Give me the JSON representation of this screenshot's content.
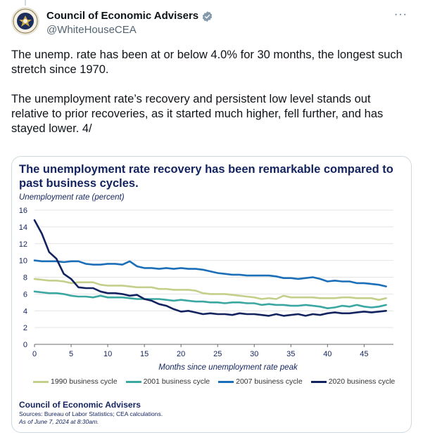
{
  "account": {
    "name": "Council of Economic Advisers",
    "handle": "@WhiteHouseCEA",
    "more_label": "···"
  },
  "tweet": {
    "paragraph1": "The unemp. rate has been at or below 4.0% for 30 months, the longest such stretch since 1970.",
    "paragraph2": "The unemployment rate’s recovery and persistent low level stands out relative to prior recoveries, as it started much higher, fell further, and has stayed lower. 4/"
  },
  "card": {
    "organization": "Council of Economic Advisers",
    "sources": "Sources: Bureau of Labor Statistics; CEA calculations.",
    "as_of": "As of June 7, 2024 at 8:30am."
  },
  "colors": {
    "navy": "#13235f",
    "s1990": "#c3d08a",
    "s2001": "#3aa7a0",
    "s2007": "#1b6fb8",
    "s2020": "#13235f",
    "verified": "#829aab"
  },
  "chart_data": {
    "type": "line",
    "title": "The unemployment rate recovery has been remarkable compared to past business cycles.",
    "ylabel": "Unemployment rate (percent)",
    "xlabel": "Months since unemployment rate peak",
    "xlim": [
      0,
      49
    ],
    "ylim": [
      0,
      16
    ],
    "xticks": [
      0,
      5,
      10,
      15,
      20,
      25,
      30,
      35,
      40,
      45
    ],
    "yticks": [
      0,
      2,
      4,
      6,
      8,
      10,
      12,
      14,
      16
    ],
    "grid": "horizontal",
    "legend": "bottom",
    "series": [
      {
        "name": "1990 business cycle",
        "values": [
          7.8,
          7.7,
          7.6,
          7.6,
          7.5,
          7.3,
          7.4,
          7.4,
          7.4,
          7.1,
          7.0,
          7.0,
          7.0,
          6.9,
          6.8,
          6.8,
          6.8,
          6.6,
          6.6,
          6.5,
          6.5,
          6.5,
          6.4,
          6.1,
          6.0,
          6.0,
          6.0,
          5.9,
          5.8,
          5.7,
          5.6,
          5.4,
          5.5,
          5.4,
          5.8,
          5.6,
          5.6,
          5.6,
          5.6,
          5.5,
          5.5,
          5.5,
          5.6,
          5.6,
          5.5,
          5.5,
          5.5,
          5.3,
          5.5
        ]
      },
      {
        "name": "2001 business cycle",
        "values": [
          6.3,
          6.2,
          6.1,
          6.1,
          6.0,
          5.8,
          5.7,
          5.7,
          5.6,
          5.8,
          5.6,
          5.6,
          5.6,
          5.5,
          5.4,
          5.4,
          5.4,
          5.4,
          5.3,
          5.2,
          5.3,
          5.2,
          5.1,
          5.1,
          5.0,
          5.0,
          4.9,
          5.0,
          5.0,
          4.9,
          4.9,
          4.7,
          4.8,
          4.7,
          4.7,
          4.6,
          4.6,
          4.7,
          4.6,
          4.5,
          4.3,
          4.4,
          4.6,
          4.5,
          4.7,
          4.5,
          4.4,
          4.5,
          4.7
        ]
      },
      {
        "name": "2007 business cycle",
        "values": [
          10.0,
          9.9,
          9.9,
          9.9,
          9.8,
          9.9,
          9.9,
          9.6,
          9.5,
          9.5,
          9.6,
          9.6,
          9.5,
          9.9,
          9.3,
          9.1,
          9.1,
          9.0,
          9.1,
          9.0,
          9.1,
          9.0,
          9.0,
          8.9,
          8.7,
          8.5,
          8.4,
          8.3,
          8.3,
          8.2,
          8.2,
          8.2,
          8.2,
          8.1,
          7.9,
          7.9,
          7.8,
          7.9,
          8.0,
          7.8,
          7.5,
          7.6,
          7.5,
          7.5,
          7.3,
          7.3,
          7.2,
          7.1,
          6.9
        ]
      },
      {
        "name": "2020 business cycle",
        "values": [
          14.8,
          13.2,
          11.0,
          10.2,
          8.4,
          7.8,
          6.8,
          6.7,
          6.7,
          6.3,
          6.1,
          6.1,
          6.0,
          5.8,
          5.9,
          5.4,
          5.2,
          4.8,
          4.6,
          4.2,
          3.9,
          4.0,
          3.8,
          3.6,
          3.7,
          3.6,
          3.6,
          3.5,
          3.7,
          3.6,
          3.6,
          3.5,
          3.4,
          3.6,
          3.4,
          3.5,
          3.6,
          3.4,
          3.6,
          3.5,
          3.7,
          3.8,
          3.7,
          3.7,
          3.8,
          3.9,
          3.8,
          3.9,
          4.0
        ]
      }
    ]
  }
}
